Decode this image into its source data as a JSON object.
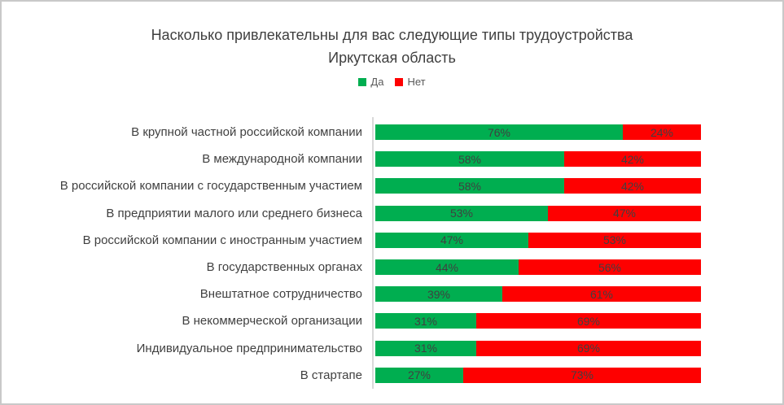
{
  "window": {
    "background": "#ffffff",
    "border_color": "#c9c9c9"
  },
  "chart_data": {
    "type": "bar",
    "orientation": "horizontal",
    "stacked": true,
    "title_line1": "Насколько привлекательны для вас следующие типы трудоустройства",
    "title_line2": "Иркутская область",
    "legend_position": "top",
    "grid": false,
    "xlim": [
      0,
      100
    ],
    "value_suffix": "%",
    "axis_line_color": "#d9d9d9",
    "label_color": "#404040",
    "categories": [
      "В крупной частной российской компании",
      "В международной компании",
      "В российской компании с государственным участием",
      "В предприятии малого или среднего бизнеса",
      "В российской компании с иностранным участием",
      "В государственных органах",
      "Внештатное сотрудничество",
      "В некоммерческой организации",
      "Индивидуальное предпринимательство",
      "В стартапе"
    ],
    "series": [
      {
        "name": "Да",
        "color": "#00AE50",
        "values": [
          76,
          58,
          58,
          53,
          47,
          44,
          39,
          31,
          31,
          27
        ]
      },
      {
        "name": "Нет",
        "color": "#FE0000",
        "values": [
          24,
          42,
          42,
          47,
          53,
          56,
          61,
          69,
          69,
          73
        ]
      }
    ]
  }
}
